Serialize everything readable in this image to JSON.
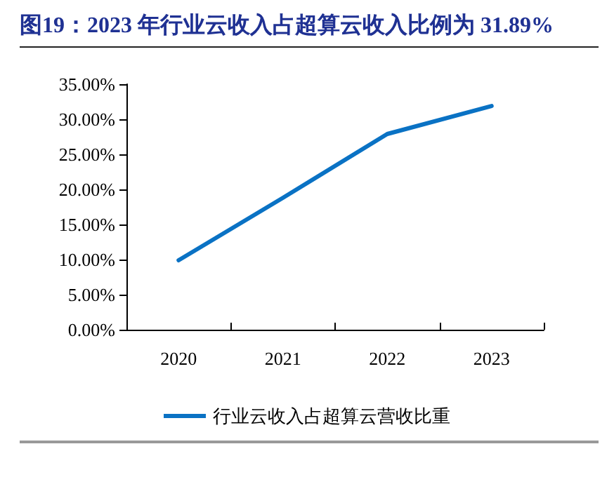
{
  "chart_data": {
    "type": "line",
    "title": "图19：2023 年行业云收入占超算云收入比例为 31.89%",
    "categories": [
      "2020",
      "2021",
      "2022",
      "2023"
    ],
    "series": [
      {
        "name": "行业云收入占超算云营收比重",
        "color": "#0a72c4",
        "values": [
          9.9,
          18.8,
          27.9,
          31.89
        ]
      }
    ],
    "ylim": [
      0,
      35
    ],
    "yticks": [
      {
        "value": 0,
        "label": "0.00%"
      },
      {
        "value": 5,
        "label": "5.00%"
      },
      {
        "value": 10,
        "label": "10.00%"
      },
      {
        "value": 15,
        "label": "15.00%"
      },
      {
        "value": 20,
        "label": "20.00%"
      },
      {
        "value": 25,
        "label": "25.00%"
      },
      {
        "value": 30,
        "label": "30.00%"
      },
      {
        "value": 35,
        "label": "35.00%"
      }
    ],
    "grid": false,
    "legend": "bottom",
    "marker": "none",
    "line_style": "solid"
  }
}
